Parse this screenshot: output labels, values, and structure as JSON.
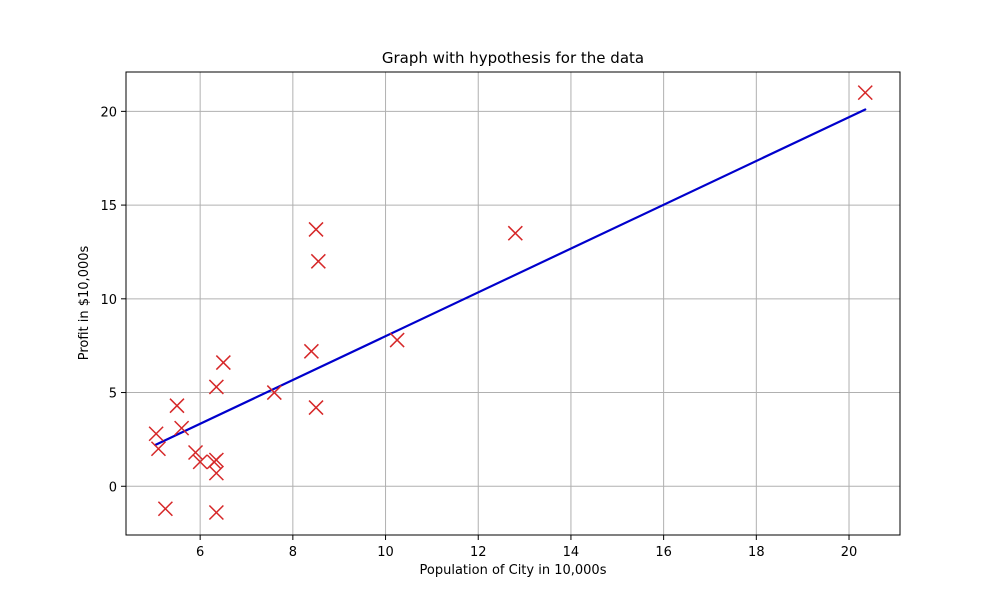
{
  "chart_data": {
    "type": "scatter",
    "title": "Graph with hypothesis for the data",
    "xlabel": "Population of City in 10,000s",
    "ylabel": "Profit in $10,000s",
    "xlim": [
      4.4,
      21.1
    ],
    "ylim": [
      -2.6,
      22.1
    ],
    "xticks": [
      6,
      8,
      10,
      12,
      14,
      16,
      18,
      20
    ],
    "yticks": [
      0,
      5,
      10,
      15,
      20
    ],
    "grid": true,
    "series": [
      {
        "type": "scatter",
        "marker": "x",
        "color": "#d62728",
        "points": [
          {
            "x": 5.05,
            "y": 2.8
          },
          {
            "x": 5.1,
            "y": 2.0
          },
          {
            "x": 5.25,
            "y": -1.2
          },
          {
            "x": 5.5,
            "y": 4.3
          },
          {
            "x": 5.6,
            "y": 3.1
          },
          {
            "x": 5.9,
            "y": 1.8
          },
          {
            "x": 6.0,
            "y": 1.3
          },
          {
            "x": 6.3,
            "y": 1.3
          },
          {
            "x": 6.35,
            "y": 5.3
          },
          {
            "x": 6.35,
            "y": 1.4
          },
          {
            "x": 6.35,
            "y": 0.7
          },
          {
            "x": 6.35,
            "y": -1.4
          },
          {
            "x": 6.5,
            "y": 6.6
          },
          {
            "x": 7.6,
            "y": 5.0
          },
          {
            "x": 8.4,
            "y": 7.2
          },
          {
            "x": 8.5,
            "y": 13.7
          },
          {
            "x": 8.5,
            "y": 4.2
          },
          {
            "x": 8.55,
            "y": 12.0
          },
          {
            "x": 10.25,
            "y": 7.8
          },
          {
            "x": 12.8,
            "y": 13.5
          },
          {
            "x": 20.35,
            "y": 21.0
          }
        ]
      },
      {
        "type": "line",
        "color": "#0000cc",
        "points": [
          {
            "x": 5.03,
            "y": 2.2
          },
          {
            "x": 20.35,
            "y": 20.1
          }
        ]
      }
    ]
  }
}
